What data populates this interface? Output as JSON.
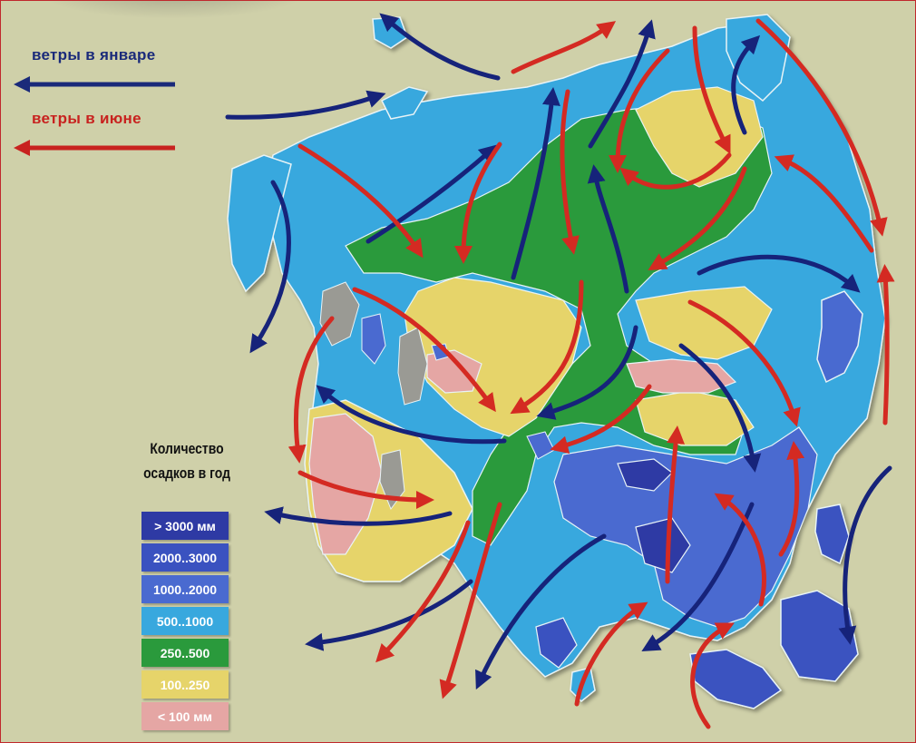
{
  "wind_legend": {
    "january": {
      "label": "ветры в январе",
      "color": "#1a2a7a"
    },
    "june": {
      "label": "ветры в июне",
      "color": "#c8221f"
    }
  },
  "precipitation_legend": {
    "title_line1": "Количество",
    "title_line2": "осадков в год",
    "items": [
      {
        "label": "> 3000 мм",
        "color": "#2e3aa4"
      },
      {
        "label": "2000..3000",
        "color": "#3a52c0"
      },
      {
        "label": "1000..2000",
        "color": "#4a6ad0"
      },
      {
        "label": "500..1000",
        "color": "#38a8de"
      },
      {
        "label": "250..500",
        "color": "#2a9a3c"
      },
      {
        "label": "100..250",
        "color": "#e6d46a"
      },
      {
        "label": "< 100 мм",
        "color": "#e5a6a4"
      }
    ]
  },
  "map": {
    "background": "#cfd0a9",
    "border_color": "#c0282c",
    "land_colors": {
      "over3000": "#2e3aa4",
      "2000_3000": "#3a52c0",
      "1000_2000": "#4a6ad0",
      "500_1000": "#38a8de",
      "250_500": "#2a9a3c",
      "100_250": "#e6d46a",
      "under100": "#e5a6a4",
      "mountains": "#9a9a94"
    }
  }
}
